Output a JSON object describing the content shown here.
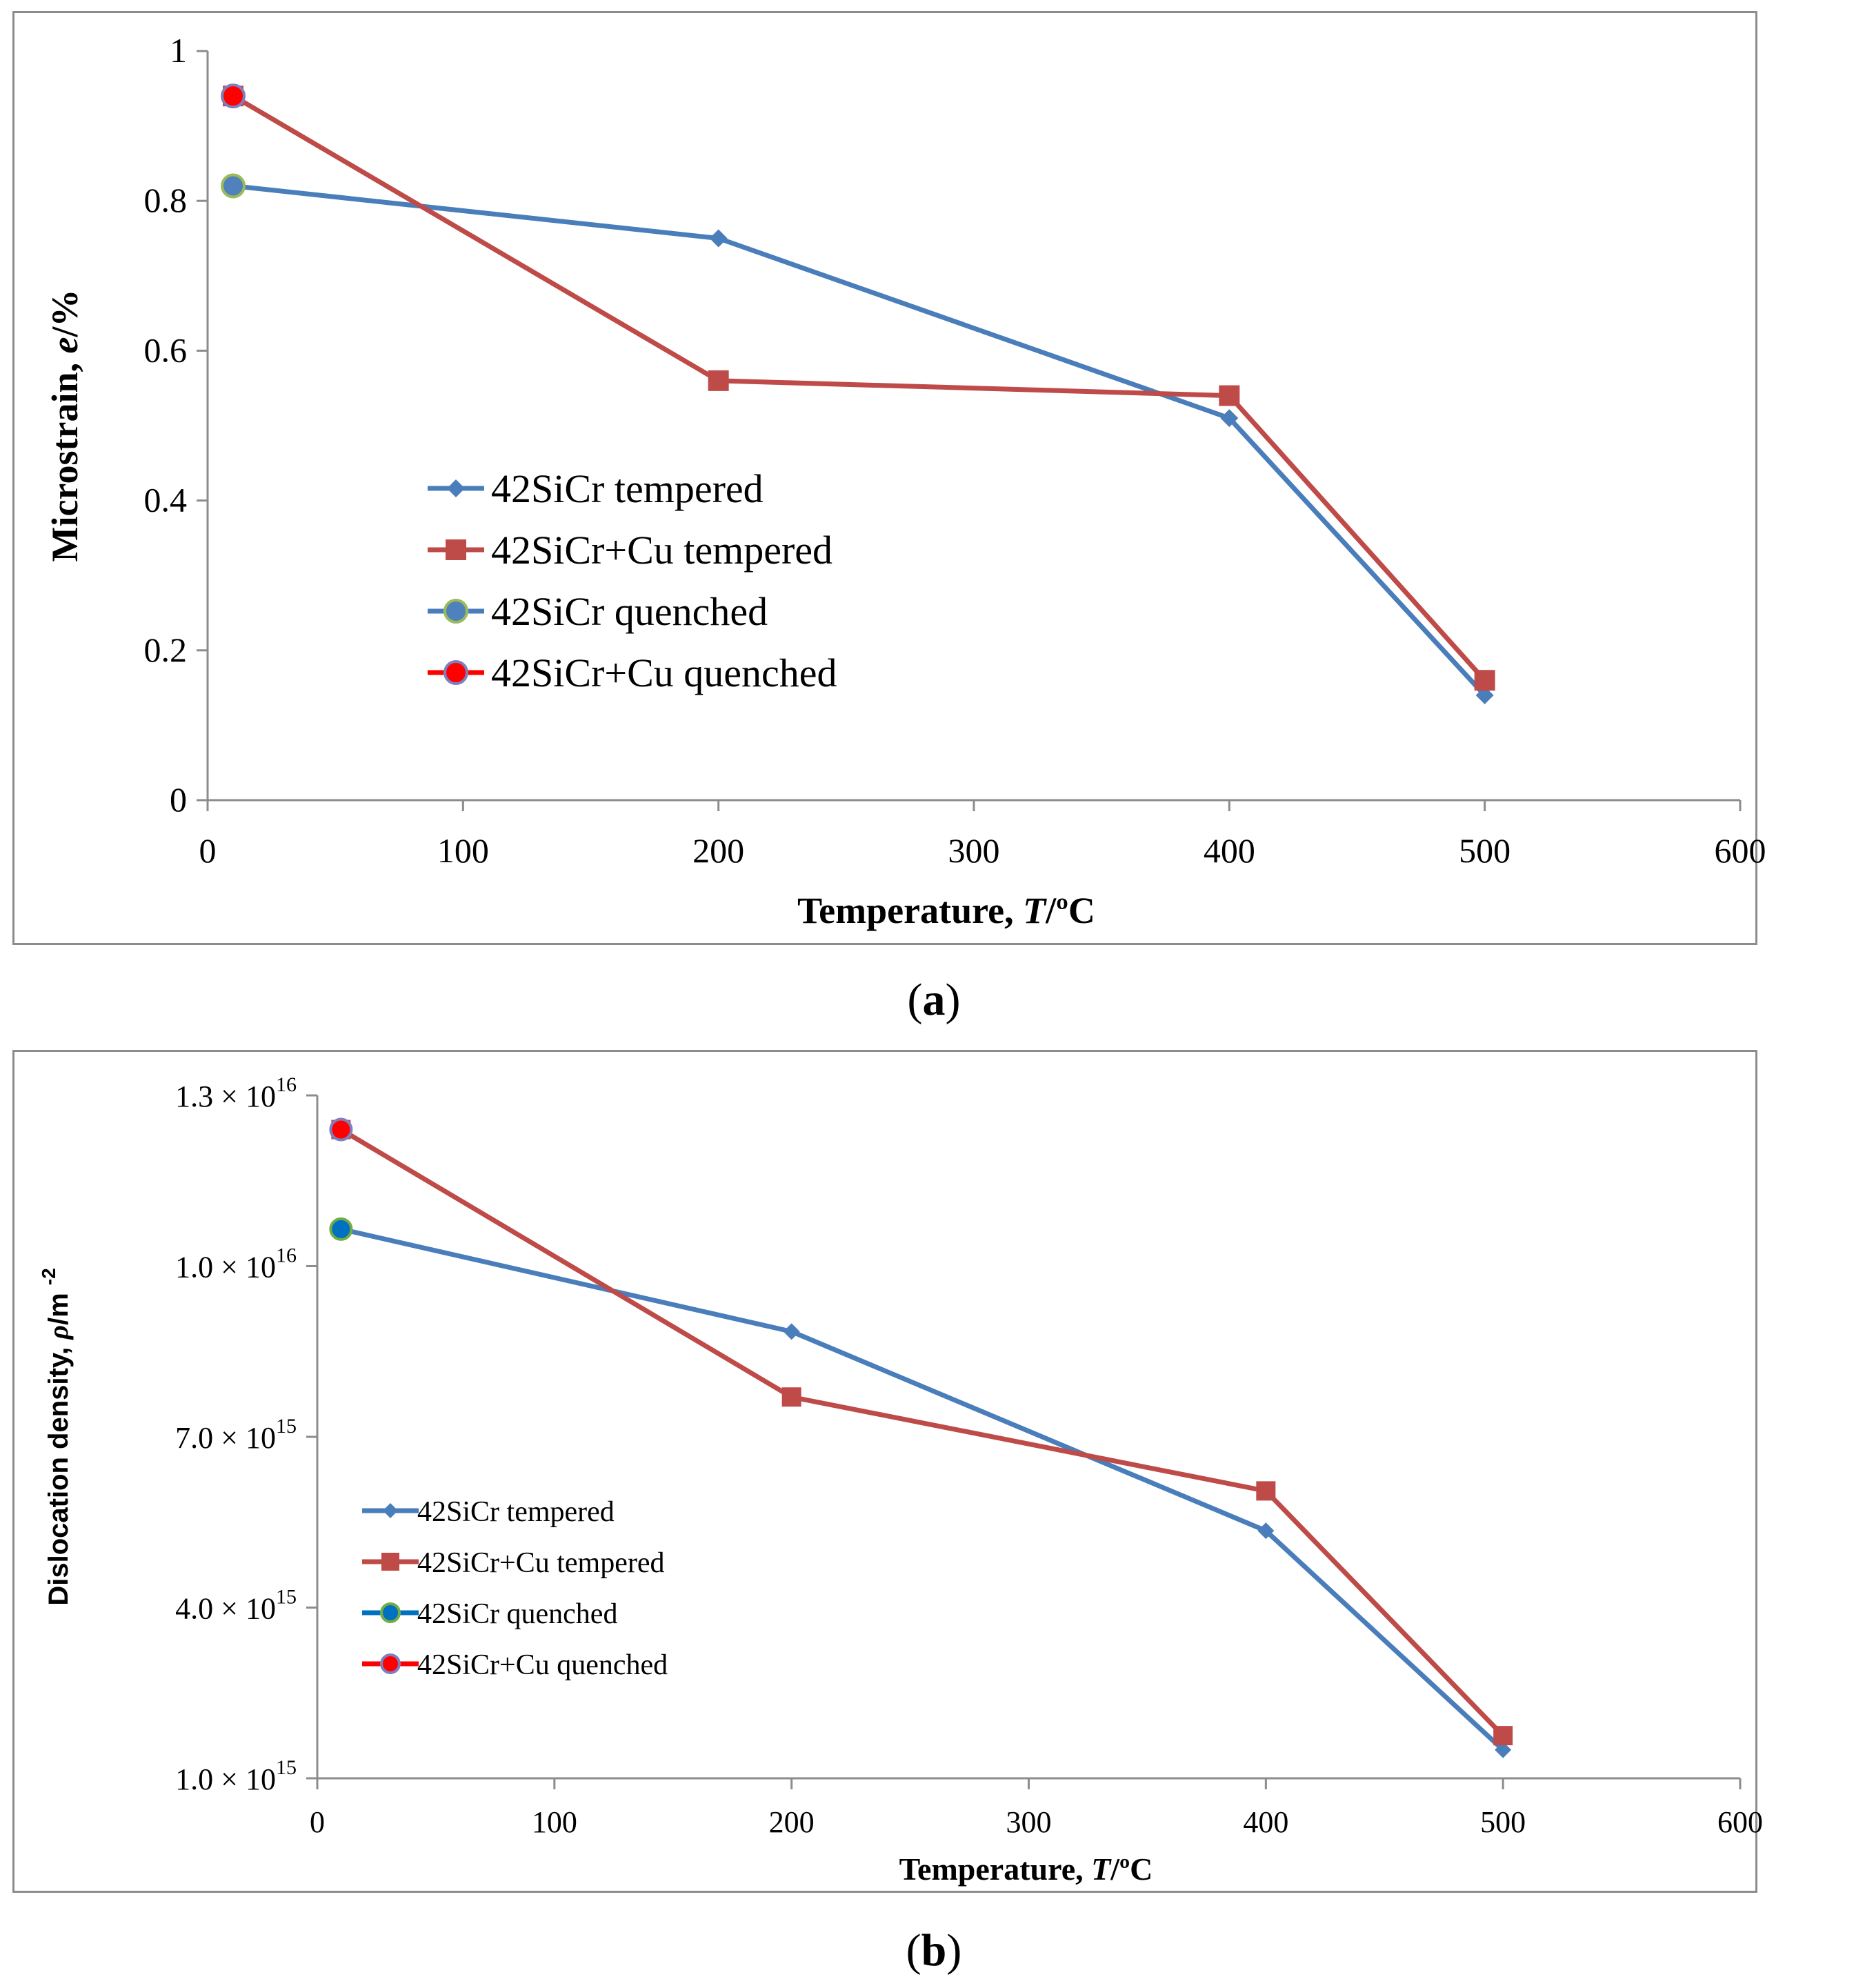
{
  "chart_data": [
    {
      "panel_label": "a",
      "type": "line",
      "xlabel": "Temperature, ",
      "xlabel_var": "T",
      "xlabel_unit": "/ºC",
      "ylabel": "Microstrain, ",
      "ylabel_var": "e",
      "ylabel_unit": "/%",
      "xlim": [
        0,
        600
      ],
      "ylim": [
        0,
        1
      ],
      "xticks": [
        "0",
        "100",
        "200",
        "300",
        "400",
        "500",
        "600"
      ],
      "yticks": [
        "0",
        "0.2",
        "0.4",
        "0.6",
        "0.8",
        "1"
      ],
      "legend_position": "center-left",
      "series": [
        {
          "name": "42SiCr tempered",
          "marker": "diamond",
          "color": "#4a7ebb",
          "x": [
            10,
            200,
            400,
            500
          ],
          "y": [
            0.82,
            0.75,
            0.51,
            0.14
          ]
        },
        {
          "name": "42SiCr+Cu tempered",
          "marker": "square",
          "color": "#be4b48",
          "x": [
            10,
            200,
            400,
            500
          ],
          "y": [
            0.94,
            0.56,
            0.54,
            0.16
          ]
        },
        {
          "name": "42SiCr quenched",
          "marker": "circle",
          "color": "#4a7ebb",
          "fill": "#4f81bd",
          "edge": "#9bbb59",
          "x": [
            10
          ],
          "y": [
            0.82
          ]
        },
        {
          "name": "42SiCr+Cu quenched",
          "marker": "circle",
          "color": "#ff0000",
          "fill": "#ff0000",
          "edge": "#7f7fbf",
          "x": [
            10
          ],
          "y": [
            0.94
          ]
        }
      ]
    },
    {
      "panel_label": "b",
      "type": "line",
      "xlabel": "Temperature, ",
      "xlabel_var": "T",
      "xlabel_unit": "/ºC",
      "ylabel": "Dislocation density, ",
      "ylabel_var": "ρ",
      "ylabel_unit": "/m ",
      "ylabel_exp": "-2",
      "xlim": [
        0,
        600
      ],
      "ylim": [
        1000000000000000.0,
        1.3e+16
      ],
      "xticks": [
        "0",
        "100",
        "200",
        "300",
        "400",
        "500",
        "600"
      ],
      "yticks": [
        {
          "mant": "1.0 × 10",
          "exp": "15",
          "value": 1000000000000000.0
        },
        {
          "mant": "4.0 × 10",
          "exp": "15",
          "value": 4000000000000000.0
        },
        {
          "mant": "7.0 × 10",
          "exp": "15",
          "value": 7000000000000000.0
        },
        {
          "mant": "1.0 × 10",
          "exp": "16",
          "value": 1e+16
        },
        {
          "mant": "1.3 × 10",
          "exp": "16",
          "value": 1.3e+16
        }
      ],
      "legend_position": "lower-left",
      "series": [
        {
          "name": "42SiCr tempered",
          "marker": "diamond",
          "color": "#4a7ebb",
          "x": [
            10,
            200,
            400,
            500
          ],
          "y": [
            1.065e+16,
            8850000000000000.0,
            5350000000000000.0,
            1500000000000000.0
          ]
        },
        {
          "name": "42SiCr+Cu tempered",
          "marker": "square",
          "color": "#be4b48",
          "x": [
            10,
            200,
            400,
            500
          ],
          "y": [
            1.24e+16,
            7700000000000000.0,
            6050000000000000.0,
            1750000000000000.0
          ]
        },
        {
          "name": "42SiCr quenched",
          "marker": "circle",
          "color": "#0070c0",
          "fill": "#0070c0",
          "edge": "#70ad47",
          "x": [
            10
          ],
          "y": [
            1.065e+16
          ]
        },
        {
          "name": "42SiCr+Cu quenched",
          "marker": "circle",
          "color": "#ff0000",
          "fill": "#ff0000",
          "edge": "#7f7fbf",
          "x": [
            10
          ],
          "y": [
            1.24e+16
          ]
        }
      ]
    }
  ]
}
